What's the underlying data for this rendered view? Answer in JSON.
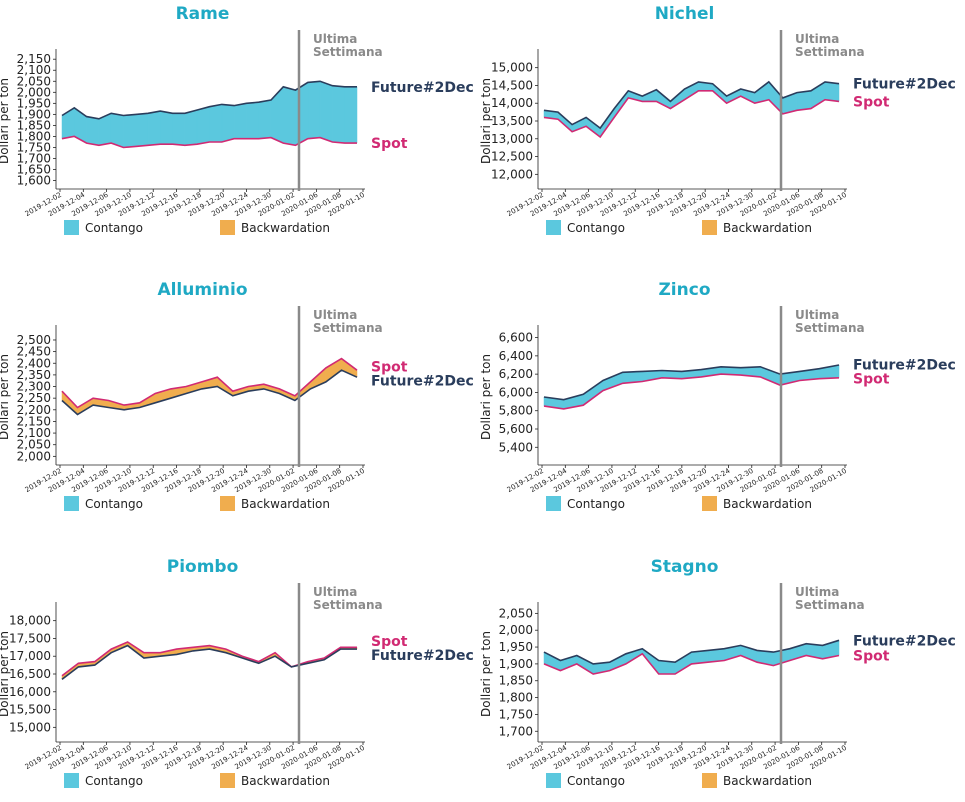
{
  "colors": {
    "contango": "#5bc8de",
    "backwardation": "#f0ad4e",
    "future_line": "#2a3d5c",
    "spot_line": "#d12a73",
    "title": "#1fa9c4",
    "vline": "#8a8a8a"
  },
  "legend": {
    "contango": "Contango",
    "backwardation": "Backwardation"
  },
  "labels": {
    "ylabel": "Dollari per ton",
    "ultima_line1": "Ultima",
    "ultima_line2": "Settimana",
    "future": "Future#2Dec",
    "spot": "Spot"
  },
  "x_ticks": [
    "2019-12-02",
    "2019-12-04",
    "2019-12-06",
    "2019-12-10",
    "2019-12-12",
    "2019-12-16",
    "2019-12-18",
    "2019-12-20",
    "2019-12-24",
    "2019-12-30",
    "2020-01-02",
    "2020-01-06",
    "2020-01-08",
    "2020-01-10"
  ],
  "chart_data": [
    {
      "type": "area",
      "title": "Rame",
      "ylim": [
        1580,
        2160
      ],
      "yticks": [
        "1,600",
        "1,650",
        "1,700",
        "1,750",
        "1,800",
        "1,850",
        "1,900",
        "1,950",
        "2,000",
        "2,050",
        "2,100",
        "2,150"
      ],
      "ytick_values": [
        1600,
        1650,
        1700,
        1750,
        1800,
        1850,
        1900,
        1950,
        2000,
        2050,
        2100,
        2150
      ],
      "upper_label": "future",
      "lower_label": "spot",
      "future": [
        1895,
        1930,
        1890,
        1880,
        1905,
        1895,
        1900,
        1905,
        1915,
        1905,
        1905,
        1920,
        1935,
        1945,
        1940,
        1950,
        1955,
        1965,
        2025,
        2010,
        2045,
        2050,
        2030,
        2025,
        2025
      ],
      "spot": [
        1790,
        1800,
        1770,
        1760,
        1770,
        1750,
        1755,
        1760,
        1765,
        1765,
        1760,
        1765,
        1775,
        1775,
        1790,
        1790,
        1790,
        1795,
        1770,
        1760,
        1790,
        1795,
        1775,
        1770,
        1770
      ]
    },
    {
      "type": "area",
      "title": "Nichel",
      "ylim": [
        11700,
        15300
      ],
      "yticks": [
        "12,000",
        "12,500",
        "13,000",
        "13,500",
        "14,000",
        "14,500",
        "15,000"
      ],
      "ytick_values": [
        12000,
        12500,
        13000,
        13500,
        14000,
        14500,
        15000
      ],
      "upper_label": "future",
      "lower_label": "spot",
      "future": [
        13800,
        13750,
        13400,
        13600,
        13300,
        13850,
        14350,
        14200,
        14380,
        14050,
        14400,
        14600,
        14550,
        14200,
        14400,
        14300,
        14600,
        14150,
        14300,
        14350,
        14600,
        14550
      ],
      "spot": [
        13600,
        13550,
        13200,
        13350,
        13050,
        13600,
        14150,
        14050,
        14050,
        13850,
        14100,
        14350,
        14350,
        14000,
        14200,
        14000,
        14100,
        13700,
        13800,
        13850,
        14100,
        14050
      ]
    },
    {
      "type": "area",
      "title": "Alluminio",
      "ylim": [
        1980,
        2530
      ],
      "yticks": [
        "2,000",
        "2,050",
        "2,100",
        "2,150",
        "2,200",
        "2,250",
        "2,300",
        "2,350",
        "2,400",
        "2,450",
        "2,500"
      ],
      "ytick_values": [
        2000,
        2050,
        2100,
        2150,
        2200,
        2250,
        2300,
        2350,
        2400,
        2450,
        2500
      ],
      "upper_label": "spot",
      "lower_label": "future",
      "future": [
        2240,
        2180,
        2220,
        2210,
        2200,
        2210,
        2230,
        2250,
        2270,
        2290,
        2300,
        2260,
        2280,
        2290,
        2270,
        2240,
        2290,
        2320,
        2370,
        2340
      ],
      "spot": [
        2280,
        2210,
        2250,
        2240,
        2220,
        2230,
        2270,
        2290,
        2300,
        2320,
        2340,
        2280,
        2300,
        2310,
        2290,
        2260,
        2320,
        2380,
        2420,
        2370
      ]
    },
    {
      "type": "area",
      "title": "Zinco",
      "ylim": [
        5250,
        6650
      ],
      "yticks": [
        "5,400",
        "5,600",
        "5,800",
        "6,000",
        "6,200",
        "6,400",
        "6,600"
      ],
      "ytick_values": [
        5400,
        5600,
        5800,
        6000,
        6200,
        6400,
        6600
      ],
      "upper_label": "future",
      "lower_label": "spot",
      "future": [
        5950,
        5920,
        5980,
        6130,
        6220,
        6230,
        6240,
        6230,
        6250,
        6280,
        6270,
        6280,
        6200,
        6230,
        6260,
        6300
      ],
      "spot": [
        5850,
        5820,
        5860,
        6020,
        6100,
        6120,
        6160,
        6150,
        6170,
        6200,
        6190,
        6170,
        6080,
        6130,
        6150,
        6160
      ]
    },
    {
      "type": "area",
      "title": "Piombo",
      "ylim": [
        14700,
        18300
      ],
      "yticks": [
        "15,000",
        "15,500",
        "16,000",
        "16,500",
        "17,000",
        "17,500",
        "18,000"
      ],
      "ytick_values": [
        15000,
        15500,
        16000,
        16500,
        17000,
        17500,
        18000
      ],
      "upper_label": "spot",
      "lower_label": "future",
      "future": [
        16350,
        16700,
        16750,
        17100,
        17300,
        16950,
        17000,
        17050,
        17150,
        17200,
        17100,
        16950,
        16800,
        17000,
        16700,
        16800,
        16900,
        17200,
        17200
      ],
      "spot": [
        16450,
        16800,
        16850,
        17200,
        17400,
        17100,
        17100,
        17200,
        17250,
        17300,
        17200,
        17000,
        16850,
        17100,
        16700,
        16850,
        16950,
        17250,
        17250
      ]
    },
    {
      "type": "area",
      "title": "Stagno",
      "ylim": [
        1680,
        2060
      ],
      "yticks": [
        "1,700",
        "1,750",
        "1,800",
        "1,850",
        "1,900",
        "1,950",
        "2,000",
        "2,050"
      ],
      "ytick_values": [
        1700,
        1750,
        1800,
        1850,
        1900,
        1950,
        2000,
        2050
      ],
      "upper_label": "future",
      "lower_label": "spot",
      "future": [
        1935,
        1910,
        1925,
        1900,
        1905,
        1930,
        1945,
        1910,
        1905,
        1935,
        1940,
        1945,
        1955,
        1940,
        1935,
        1945,
        1960,
        1955,
        1970
      ],
      "spot": [
        1900,
        1880,
        1900,
        1870,
        1880,
        1900,
        1930,
        1870,
        1870,
        1900,
        1905,
        1910,
        1925,
        1905,
        1895,
        1910,
        1925,
        1915,
        1925
      ]
    }
  ]
}
